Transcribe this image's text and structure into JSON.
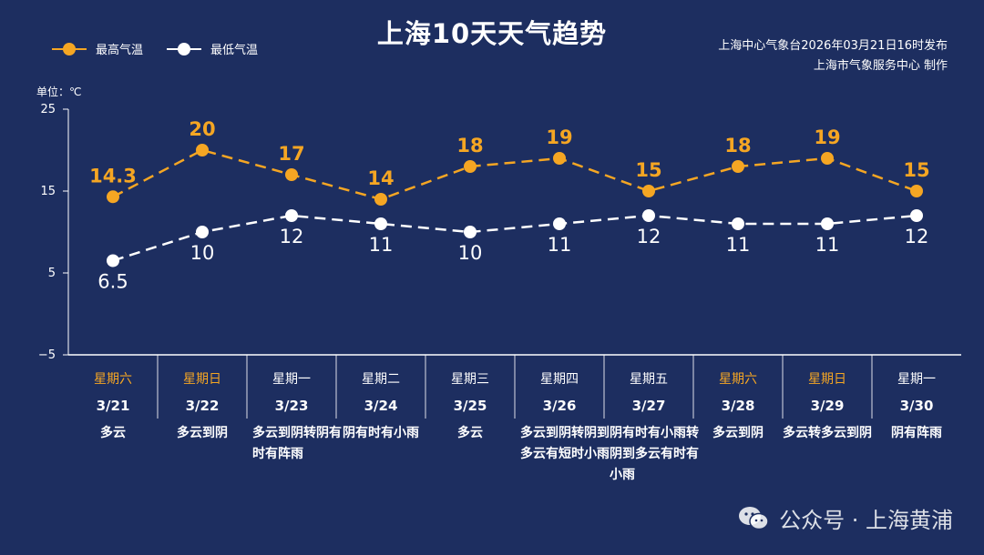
{
  "chart_data": {
    "type": "line",
    "title": "上海10天天气趋势",
    "unit_label": "单位：℃",
    "issuer": [
      "上海中心气象台2026年03月21日16时发布",
      "上海市气象服务中心 制作"
    ],
    "ylim": [
      -5,
      25
    ],
    "yticks": [
      "25",
      "15",
      "5",
      "−5"
    ],
    "ytick_values": [
      25,
      15,
      5,
      -5
    ],
    "legend_position": "top-left",
    "series": [
      {
        "name": "最高气温",
        "color": "#f5a623",
        "values": [
          14.3,
          20,
          17,
          14,
          18,
          19,
          15,
          18,
          19,
          15
        ],
        "labels": [
          "14.3",
          "20",
          "17",
          "14",
          "18",
          "19",
          "15",
          "18",
          "19",
          "15"
        ]
      },
      {
        "name": "最低气温",
        "color": "#ffffff",
        "values": [
          6.5,
          10,
          12,
          11,
          10,
          11,
          12,
          11,
          11,
          12
        ],
        "labels": [
          "6.5",
          "10",
          "12",
          "11",
          "10",
          "11",
          "12",
          "11",
          "11",
          "12"
        ]
      }
    ],
    "days": [
      {
        "weekday": "星期六",
        "date": "3/21",
        "weather": "多云",
        "weekend": true
      },
      {
        "weekday": "星期日",
        "date": "3/22",
        "weather": "多云到阴",
        "weekend": true
      },
      {
        "weekday": "星期一",
        "date": "3/23",
        "weather": "多云到阴转阴有时有阵雨",
        "weekend": false
      },
      {
        "weekday": "星期二",
        "date": "3/24",
        "weather": "阴有时有小雨",
        "weekend": false
      },
      {
        "weekday": "星期三",
        "date": "3/25",
        "weather": "多云",
        "weekend": false
      },
      {
        "weekday": "星期四",
        "date": "3/26",
        "weather": "多云到阴转阴到多云有短时小雨",
        "weekend": false
      },
      {
        "weekday": "星期五",
        "date": "3/27",
        "weather": "阴有时有小雨转阴到多云有时有小雨",
        "weekend": false
      },
      {
        "weekday": "星期六",
        "date": "3/28",
        "weather": "多云到阴",
        "weekend": true
      },
      {
        "weekday": "星期日",
        "date": "3/29",
        "weather": "多云转多云到阴",
        "weekend": true
      },
      {
        "weekday": "星期一",
        "date": "3/30",
        "weather": "阴有阵雨",
        "weekend": false
      }
    ]
  },
  "colors": {
    "background": "#1d2e60",
    "axis": "#ffffff",
    "weekend": "#f5a623"
  },
  "watermark": "公众号 · 上海黄浦"
}
